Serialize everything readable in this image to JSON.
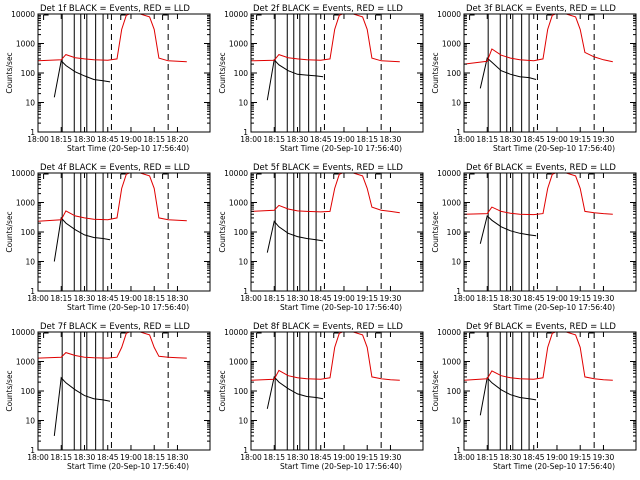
{
  "figure": {
    "background": "#ffffff",
    "colors": {
      "events": "#000000",
      "lld": "#e00000",
      "axes": "#000000"
    }
  },
  "chart_data": [
    {
      "type": "line",
      "title": "Det 1f BLACK = Events, RED = LLD",
      "xlabel": "Start Time (20-Sep-10 17:56:40)",
      "ylabel": "Counts/sec",
      "y_scale": "log",
      "ylim": [
        1,
        10000
      ],
      "yticks": [
        "1",
        "10",
        "100",
        "1000",
        "10000"
      ],
      "xlim": [
        0,
        37
      ],
      "xticks": [
        "18:00",
        "18:15",
        "18:30",
        "18:45",
        "19:00",
        "18:15",
        "18:20"
      ],
      "xtick_positions": [
        0,
        5,
        10,
        15,
        20,
        25,
        30
      ],
      "series": [
        {
          "name": "BLACK = Events",
          "color": "#000000",
          "x": [
            3.5,
            5,
            6,
            8,
            10,
            12,
            14,
            15.5
          ],
          "y": [
            15,
            260,
            180,
            110,
            80,
            60,
            55,
            50
          ]
        },
        {
          "name": "RED = LLD",
          "color": "#e00000",
          "x": [
            0,
            5,
            6,
            8,
            10,
            12,
            15,
            17,
            18,
            19,
            20,
            22,
            24,
            25,
            26,
            28,
            30,
            32
          ],
          "y": [
            260,
            280,
            420,
            330,
            300,
            280,
            270,
            300,
            3000,
            9000,
            10500,
            10000,
            8000,
            3000,
            320,
            260,
            250,
            240
          ]
        }
      ]
    },
    {
      "type": "line",
      "title": "Det 2f BLACK = Events, RED = LLD",
      "xlabel": "Start Time (20-Sep-10 17:56:40)",
      "ylabel": "Counts/sec",
      "y_scale": "log",
      "ylim": [
        1,
        10000
      ],
      "yticks": [
        "1",
        "10",
        "100",
        "1000",
        "10000"
      ],
      "xlim": [
        0,
        37
      ],
      "xticks": [
        "18:00",
        "18:15",
        "18:30",
        "18:45",
        "19:00",
        "18:15",
        "18:30"
      ],
      "xtick_positions": [
        0,
        5,
        10,
        15,
        20,
        25,
        30
      ],
      "series": [
        {
          "name": "BLACK = Events",
          "color": "#000000",
          "x": [
            3.5,
            5,
            6,
            8,
            10,
            12,
            14,
            15.5
          ],
          "y": [
            12,
            280,
            190,
            120,
            90,
            85,
            80,
            75
          ]
        },
        {
          "name": "RED = LLD",
          "color": "#e00000",
          "x": [
            0,
            5,
            6,
            8,
            10,
            12,
            15,
            17,
            18,
            19,
            20,
            22,
            24,
            25,
            26,
            28,
            30,
            32
          ],
          "y": [
            260,
            270,
            420,
            330,
            300,
            280,
            270,
            300,
            3000,
            9000,
            10500,
            10000,
            8000,
            3000,
            320,
            260,
            250,
            240
          ]
        }
      ]
    },
    {
      "type": "line",
      "title": "Det 3f BLACK = Events, RED = LLD",
      "xlabel": "Start Time (20-Sep-10 17:56:40)",
      "ylabel": "Counts/sec",
      "y_scale": "log",
      "ylim": [
        1,
        10000
      ],
      "yticks": [
        "1",
        "10",
        "100",
        "1000",
        "10000"
      ],
      "xlim": [
        0,
        37
      ],
      "xticks": [
        "18:00",
        "18:15",
        "18:30",
        "18:45",
        "19:00",
        "19:15",
        "19:30"
      ],
      "xtick_positions": [
        0,
        5,
        10,
        15,
        20,
        25,
        30
      ],
      "series": [
        {
          "name": "BLACK = Events",
          "color": "#000000",
          "x": [
            3.5,
            5,
            6,
            8,
            10,
            12,
            14,
            15.5
          ],
          "y": [
            30,
            320,
            230,
            120,
            90,
            75,
            70,
            60
          ]
        },
        {
          "name": "RED = LLD",
          "color": "#e00000",
          "x": [
            0,
            5,
            6,
            8,
            10,
            12,
            15,
            17,
            18,
            19,
            20,
            22,
            24,
            25,
            26,
            28,
            30,
            32
          ],
          "y": [
            200,
            250,
            650,
            400,
            320,
            280,
            260,
            300,
            3000,
            9000,
            10500,
            10000,
            8000,
            3000,
            500,
            350,
            280,
            240
          ]
        }
      ]
    },
    {
      "type": "line",
      "title": "Det 4f BLACK = Events, RED = LLD",
      "xlabel": "Start Time (20-Sep-10 17:56:40)",
      "ylabel": "Counts/sec",
      "y_scale": "log",
      "ylim": [
        1,
        10000
      ],
      "yticks": [
        "1",
        "10",
        "100",
        "1000",
        "10000"
      ],
      "xlim": [
        0,
        37
      ],
      "xticks": [
        "18:00",
        "18:15",
        "18:30",
        "18:45",
        "19:00",
        "18:15",
        "18:30"
      ],
      "xtick_positions": [
        0,
        5,
        10,
        15,
        20,
        25,
        30
      ],
      "series": [
        {
          "name": "BLACK = Events",
          "color": "#000000",
          "x": [
            3.5,
            5,
            6,
            8,
            10,
            12,
            14,
            15.5
          ],
          "y": [
            10,
            300,
            200,
            120,
            80,
            65,
            60,
            55
          ]
        },
        {
          "name": "RED = LLD",
          "color": "#e00000",
          "x": [
            0,
            5,
            6,
            8,
            10,
            12,
            15,
            17,
            18,
            19,
            20,
            22,
            24,
            25,
            26,
            28,
            30,
            32
          ],
          "y": [
            230,
            260,
            520,
            350,
            300,
            270,
            260,
            300,
            3000,
            9000,
            10500,
            10000,
            8000,
            3000,
            300,
            260,
            250,
            240
          ]
        }
      ]
    },
    {
      "type": "line",
      "title": "Det 5f BLACK = Events, RED = LLD",
      "xlabel": "Start Time (20-Sep-10 17:56:40)",
      "ylabel": "Counts/sec",
      "y_scale": "log",
      "ylim": [
        1,
        10000
      ],
      "yticks": [
        "1",
        "10",
        "100",
        "1000",
        "10000"
      ],
      "xlim": [
        0,
        37
      ],
      "xticks": [
        "18:00",
        "18:15",
        "18:30",
        "18:45",
        "19:00",
        "19:15",
        "19:30"
      ],
      "xtick_positions": [
        0,
        5,
        10,
        15,
        20,
        25,
        30
      ],
      "series": [
        {
          "name": "BLACK = Events",
          "color": "#000000",
          "x": [
            3.5,
            5,
            6,
            8,
            10,
            12,
            14,
            15.5
          ],
          "y": [
            20,
            230,
            150,
            90,
            70,
            60,
            55,
            50
          ]
        },
        {
          "name": "RED = LLD",
          "color": "#e00000",
          "x": [
            0,
            5,
            6,
            8,
            10,
            12,
            15,
            17,
            18,
            19,
            20,
            22,
            24,
            25,
            26,
            28,
            30,
            32
          ],
          "y": [
            500,
            550,
            800,
            600,
            520,
            500,
            480,
            500,
            3000,
            9000,
            10500,
            10000,
            8000,
            3000,
            700,
            550,
            500,
            450
          ]
        }
      ]
    },
    {
      "type": "line",
      "title": "Det 6f BLACK = Events, RED = LLD",
      "xlabel": "Start Time (20-Sep-10 17:56:40)",
      "ylabel": "Counts/sec",
      "y_scale": "log",
      "ylim": [
        1,
        10000
      ],
      "yticks": [
        "1",
        "10",
        "100",
        "1000",
        "10000"
      ],
      "xlim": [
        0,
        37
      ],
      "xticks": [
        "18:00",
        "18:15",
        "18:30",
        "18:45",
        "19:00",
        "19:15",
        "19:30"
      ],
      "xtick_positions": [
        0,
        5,
        10,
        15,
        20,
        25,
        30
      ],
      "series": [
        {
          "name": "BLACK = Events",
          "color": "#000000",
          "x": [
            3.5,
            5,
            6,
            8,
            10,
            12,
            14,
            15.5
          ],
          "y": [
            40,
            350,
            250,
            150,
            110,
            90,
            80,
            75
          ]
        },
        {
          "name": "RED = LLD",
          "color": "#e00000",
          "x": [
            0,
            5,
            6,
            8,
            10,
            12,
            15,
            17,
            18,
            19,
            20,
            22,
            24,
            25,
            26,
            28,
            30,
            32
          ],
          "y": [
            400,
            420,
            700,
            500,
            430,
            400,
            390,
            420,
            3000,
            9000,
            10500,
            10000,
            8000,
            3000,
            500,
            450,
            420,
            400
          ]
        }
      ]
    },
    {
      "type": "line",
      "title": "Det 7f BLACK = Events, RED = LLD",
      "xlabel": "Start Time (20-Sep-10 17:56:40)",
      "ylabel": "Counts/sec",
      "y_scale": "log",
      "ylim": [
        1,
        10000
      ],
      "yticks": [
        "1",
        "10",
        "100",
        "1000",
        "10000"
      ],
      "xlim": [
        0,
        37
      ],
      "xticks": [
        "18:00",
        "18:15",
        "18:30",
        "18:45",
        "19:00",
        "18:15",
        "18:30"
      ],
      "xtick_positions": [
        0,
        5,
        10,
        15,
        20,
        25,
        30
      ],
      "series": [
        {
          "name": "BLACK = Events",
          "color": "#000000",
          "x": [
            3.5,
            5,
            6,
            8,
            10,
            12,
            14,
            15.5
          ],
          "y": [
            3,
            280,
            190,
            110,
            70,
            55,
            50,
            45
          ]
        },
        {
          "name": "RED = LLD",
          "color": "#e00000",
          "x": [
            0,
            5,
            6,
            8,
            10,
            12,
            15,
            17,
            18,
            19,
            20,
            22,
            24,
            25,
            26,
            28,
            30,
            32
          ],
          "y": [
            1300,
            1400,
            2000,
            1600,
            1400,
            1350,
            1300,
            1400,
            3000,
            9000,
            10500,
            10000,
            8000,
            3000,
            1500,
            1400,
            1350,
            1300
          ]
        }
      ]
    },
    {
      "type": "line",
      "title": "Det 8f BLACK = Events, RED = LLD",
      "xlabel": "Start Time (20-Sep-10 17:56:40)",
      "ylabel": "Counts/sec",
      "y_scale": "log",
      "ylim": [
        1,
        10000
      ],
      "yticks": [
        "1",
        "10",
        "100",
        "1000",
        "10000"
      ],
      "xlim": [
        0,
        37
      ],
      "xticks": [
        "18:00",
        "18:15",
        "18:30",
        "18:45",
        "19:00",
        "19:15",
        "19:30"
      ],
      "xtick_positions": [
        0,
        5,
        10,
        15,
        20,
        25,
        30
      ],
      "series": [
        {
          "name": "BLACK = Events",
          "color": "#000000",
          "x": [
            3.5,
            5,
            6,
            8,
            10,
            12,
            14,
            15.5
          ],
          "y": [
            25,
            300,
            200,
            120,
            80,
            65,
            60,
            55
          ]
        },
        {
          "name": "RED = LLD",
          "color": "#e00000",
          "x": [
            0,
            5,
            6,
            8,
            10,
            12,
            15,
            17,
            18,
            19,
            20,
            22,
            24,
            25,
            26,
            28,
            30,
            32
          ],
          "y": [
            230,
            250,
            500,
            330,
            280,
            260,
            250,
            280,
            3000,
            9000,
            10500,
            10000,
            8000,
            3000,
            300,
            260,
            240,
            230
          ]
        }
      ]
    },
    {
      "type": "line",
      "title": "Det 9f BLACK = Events, RED = LLD",
      "xlabel": "Start Time (20-Sep-10 17:56:40)",
      "ylabel": "Counts/sec",
      "y_scale": "log",
      "ylim": [
        1,
        10000
      ],
      "yticks": [
        "1",
        "10",
        "100",
        "1000",
        "10000"
      ],
      "xlim": [
        0,
        37
      ],
      "xticks": [
        "18:00",
        "18:15",
        "18:30",
        "18:45",
        "19:00",
        "19:15",
        "19:30"
      ],
      "xtick_positions": [
        0,
        5,
        10,
        15,
        20,
        25,
        30
      ],
      "series": [
        {
          "name": "BLACK = Events",
          "color": "#000000",
          "x": [
            3.5,
            5,
            6,
            8,
            10,
            12,
            14,
            15.5
          ],
          "y": [
            15,
            280,
            190,
            110,
            75,
            60,
            55,
            50
          ]
        },
        {
          "name": "RED = LLD",
          "color": "#e00000",
          "x": [
            0,
            5,
            6,
            8,
            10,
            12,
            15,
            17,
            18,
            19,
            20,
            22,
            24,
            25,
            26,
            28,
            30,
            32
          ],
          "y": [
            230,
            260,
            480,
            330,
            280,
            260,
            250,
            280,
            3000,
            9000,
            10500,
            10000,
            8000,
            3000,
            300,
            260,
            240,
            230
          ]
        }
      ]
    }
  ]
}
